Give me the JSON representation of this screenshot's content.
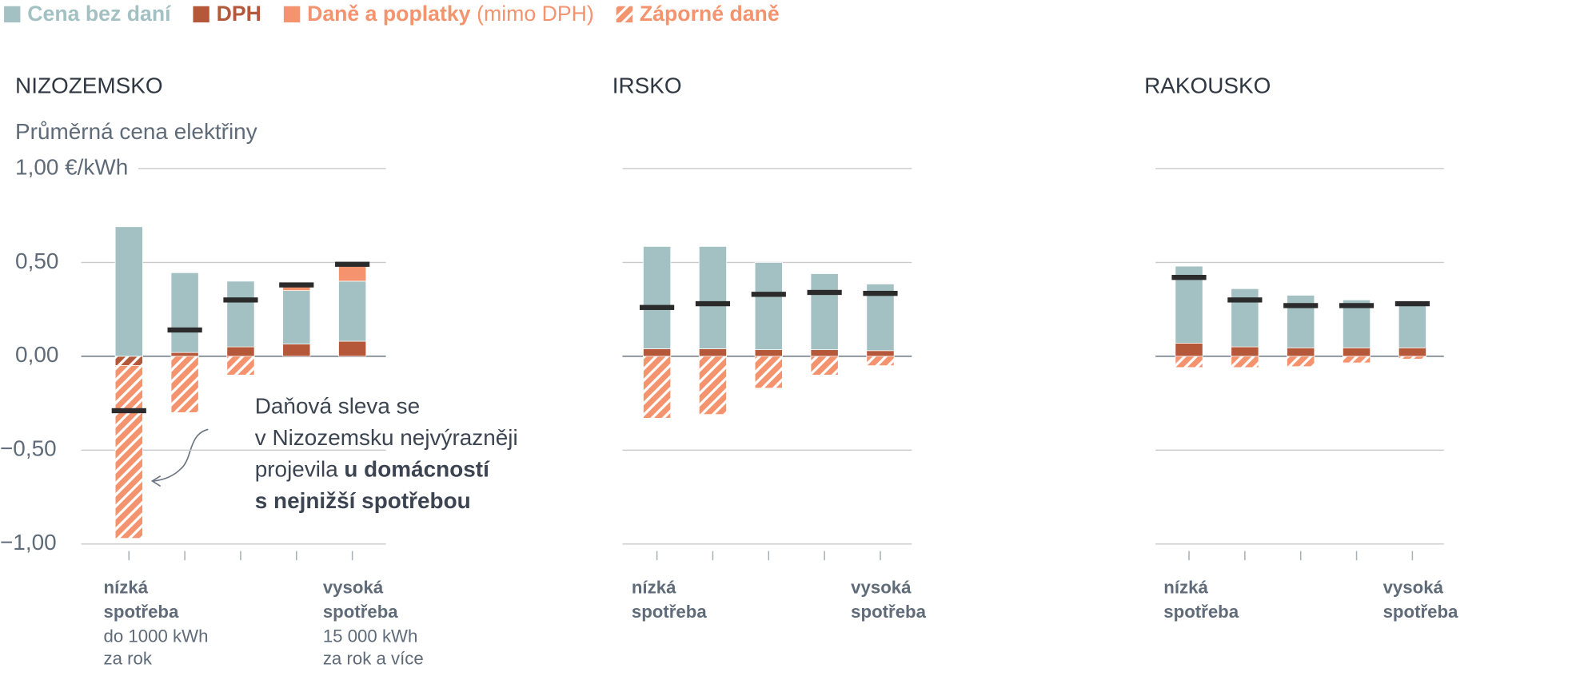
{
  "chart_data": [
    {
      "type": "bar",
      "title": "NIZOZEMSKO",
      "subtitle": "Průměrná cena elektřiny",
      "categories": [
        [
          "nízká",
          "spotřeba"
        ],
        null,
        null,
        null,
        [
          "vysoká",
          "spotřeba"
        ]
      ],
      "category_notes": [
        [
          "do 1000 kWh",
          "za rok"
        ],
        null,
        null,
        null,
        [
          "15 000 kWh",
          "za rok a více"
        ]
      ],
      "series": [
        {
          "name": "Cena bez daní",
          "color": "#a3c1c2",
          "values": [
            0.69,
            0.425,
            0.35,
            0.285,
            0.32
          ]
        },
        {
          "name": "DPH",
          "color": "#b5583a",
          "values": [
            -0.05,
            0.02,
            0.05,
            0.065,
            0.08
          ]
        },
        {
          "name": "Daně a poplatky",
          "name_note": "(mimo DPH)",
          "color": "#f4936e",
          "values": [
            0,
            0,
            0,
            0.02,
            0.08
          ]
        },
        {
          "name": "Záporné daně",
          "color": "#f4936e",
          "hatched": true,
          "values": [
            -0.92,
            -0.3,
            -0.1,
            0,
            0
          ]
        }
      ],
      "net_values": [
        -0.29,
        0.14,
        0.3,
        0.38,
        0.49
      ],
      "net_color": "#2b2b2b",
      "ylim": [
        -1,
        1
      ],
      "yticks": [
        {
          "value": -1,
          "label": "−1,00"
        },
        {
          "value": -0.5,
          "label": "−0,50"
        },
        {
          "value": 0,
          "label": "0,00"
        },
        {
          "value": 0.5,
          "label": "0,50"
        },
        {
          "value": 1,
          "label": "1,00 €/kWh"
        }
      ],
      "show_ytick_labels": true,
      "annotation": {
        "lines": [
          "Daňová sleva se",
          "v Nizozemsku nejvýrazněji",
          "projevila"
        ],
        "bold_lines": [
          "u domácností",
          "s nejnižší spotřebou"
        ]
      }
    },
    {
      "type": "bar",
      "title": "IRSKO",
      "categories": [
        [
          "nízká",
          "spotřeba"
        ],
        null,
        null,
        null,
        [
          "vysoká",
          "spotřeba"
        ]
      ],
      "series": [
        {
          "name": "Cena bez daní",
          "color": "#a3c1c2",
          "values": [
            0.545,
            0.545,
            0.465,
            0.405,
            0.355
          ]
        },
        {
          "name": "DPH",
          "color": "#b5583a",
          "values": [
            0.04,
            0.04,
            0.035,
            0.035,
            0.03
          ]
        },
        {
          "name": "Daně a poplatky",
          "color": "#f4936e",
          "values": [
            0,
            0,
            0,
            0,
            0
          ]
        },
        {
          "name": "Záporné daně",
          "color": "#f4936e",
          "hatched": true,
          "values": [
            -0.33,
            -0.31,
            -0.17,
            -0.1,
            -0.05
          ]
        }
      ],
      "net_values": [
        0.26,
        0.28,
        0.33,
        0.34,
        0.335
      ],
      "net_color": "#2b2b2b",
      "ylim": [
        -1,
        1
      ],
      "yticks": [
        -1,
        -0.5,
        0,
        0.5,
        1
      ],
      "show_ytick_labels": false
    },
    {
      "type": "bar",
      "title": "RAKOUSKO",
      "categories": [
        [
          "nízká",
          "spotřeba"
        ],
        null,
        null,
        null,
        [
          "vysoká",
          "spotřeba"
        ]
      ],
      "series": [
        {
          "name": "Cena bez daní",
          "color": "#a3c1c2",
          "values": [
            0.41,
            0.31,
            0.28,
            0.255,
            0.24
          ]
        },
        {
          "name": "DPH",
          "color": "#b5583a",
          "values": [
            0.07,
            0.05,
            0.045,
            0.045,
            0.045
          ]
        },
        {
          "name": "Daně a poplatky",
          "color": "#f4936e",
          "values": [
            0,
            0,
            0,
            0,
            0
          ]
        },
        {
          "name": "Záporné daně",
          "color": "#f4936e",
          "hatched": true,
          "values": [
            -0.06,
            -0.06,
            -0.055,
            -0.035,
            -0.015
          ]
        }
      ],
      "net_values": [
        0.42,
        0.3,
        0.27,
        0.27,
        0.28
      ],
      "net_color": "#2b2b2b",
      "ylim": [
        -1,
        1
      ],
      "yticks": [
        -1,
        -0.5,
        0,
        0.5,
        1
      ],
      "show_ytick_labels": false
    }
  ]
}
